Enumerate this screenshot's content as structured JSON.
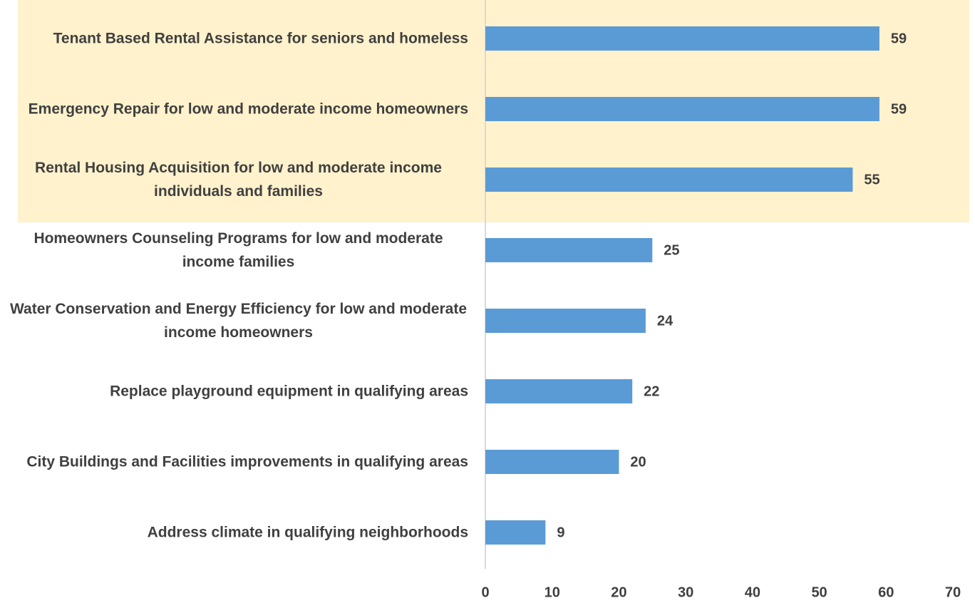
{
  "chart_data": {
    "type": "bar",
    "orientation": "horizontal",
    "categories": [
      "Tenant Based Rental Assistance for seniors and homeless",
      "Emergency Repair for low and moderate income homeowners",
      "Rental Housing Acquisition for low and moderate income individuals and families",
      "Homeowners Counseling Programs for low and moderate income families",
      "Water Conservation and Energy Efficiency for low and moderate income homeowners",
      "Replace playground equipment in qualifying areas",
      "City Buildings and Facilities improvements in qualifying areas",
      "Address climate in qualifying neighborhoods"
    ],
    "values": [
      59,
      59,
      55,
      25,
      24,
      22,
      20,
      9
    ],
    "color": "#5b9bd5",
    "xlim": [
      0,
      70
    ],
    "xticks": [
      0,
      10,
      20,
      30,
      40,
      50,
      60,
      70
    ],
    "grid": false
  }
}
